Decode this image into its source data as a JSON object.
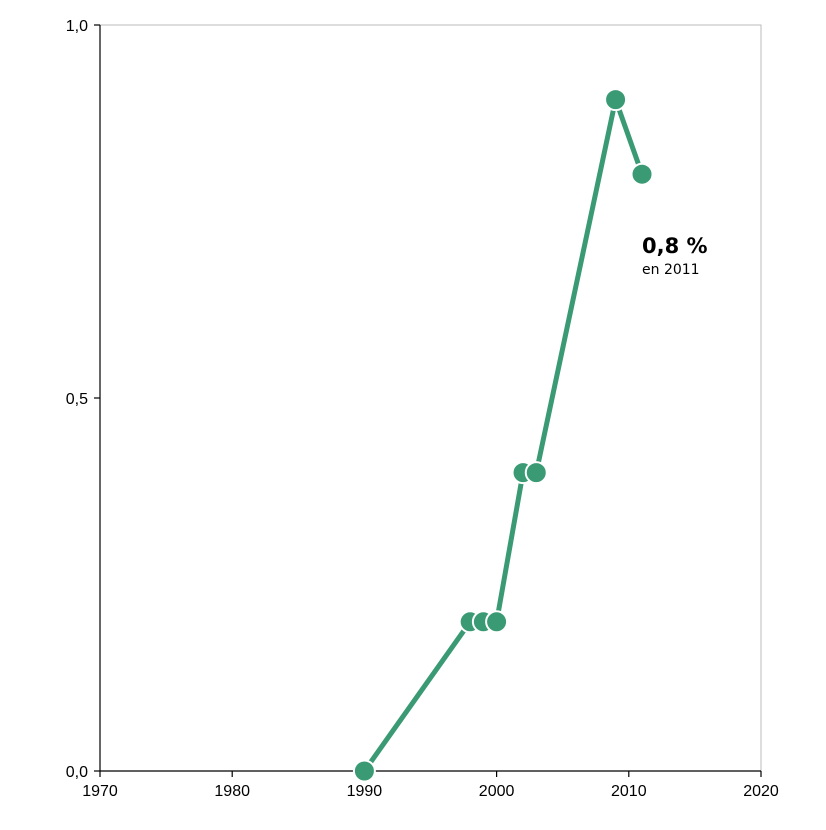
{
  "chart_data": {
    "type": "line",
    "title": "",
    "xlabel": "",
    "ylabel": "",
    "xlim": [
      1970,
      2020
    ],
    "ylim": [
      0,
      1
    ],
    "x_ticks": [
      1970,
      1980,
      1990,
      2000,
      2010,
      2020
    ],
    "x_tick_labels": [
      "1970",
      "1980",
      "1990",
      "2000",
      "2010",
      "2020"
    ],
    "y_ticks": [
      0,
      0.5,
      1
    ],
    "y_tick_labels": [
      "0,0",
      "0,5",
      "1,0"
    ],
    "grid": false,
    "series": [
      {
        "color": "#3a9a74",
        "points": [
          {
            "x": 1990,
            "y": 0.0
          },
          {
            "x": 1998,
            "y": 0.2
          },
          {
            "x": 1999,
            "y": 0.2
          },
          {
            "x": 2000,
            "y": 0.2
          },
          {
            "x": 2002,
            "y": 0.4
          },
          {
            "x": 2003,
            "y": 0.4
          },
          {
            "x": 2009,
            "y": 0.9
          },
          {
            "x": 2011,
            "y": 0.8
          }
        ]
      }
    ],
    "annotation": {
      "value_label": "0,8 %",
      "sub_label": "en 2011",
      "x": 2011,
      "y": 0.8
    },
    "colors": {
      "line": "#3a9a74",
      "axis": "#000000",
      "frame": "#bbbbbb"
    }
  }
}
